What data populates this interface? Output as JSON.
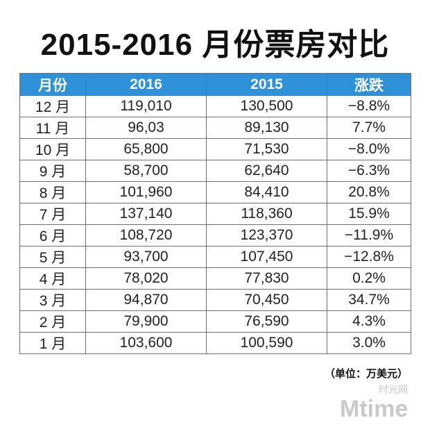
{
  "title": "2015-2016 月份票房对比",
  "chart_data": {
    "type": "table",
    "title": "2015-2016 月份票房对比",
    "columns": [
      "月份",
      "2016",
      "2015",
      "涨跌"
    ],
    "rows": [
      {
        "month": "12 月",
        "y2016": "119,010",
        "y2015": "130,500",
        "change": "−8.8%",
        "negative": true
      },
      {
        "month": "11 月",
        "y2016": "96,03",
        "y2015": "89,130",
        "change": "7.7%",
        "negative": false
      },
      {
        "month": "10 月",
        "y2016": "65,800",
        "y2015": "71,530",
        "change": "−8.0%",
        "negative": true
      },
      {
        "month": "9 月",
        "y2016": "58,700",
        "y2015": "62,640",
        "change": "−6.3%",
        "negative": true
      },
      {
        "month": "8 月",
        "y2016": "101,960",
        "y2015": "84,410",
        "change": "20.8%",
        "negative": false
      },
      {
        "month": "7 月",
        "y2016": "137,140",
        "y2015": "118,360",
        "change": "15.9%",
        "negative": false
      },
      {
        "month": "6 月",
        "y2016": "108,720",
        "y2015": "123,370",
        "change": "−11.9%",
        "negative": true
      },
      {
        "month": "5 月",
        "y2016": "93,700",
        "y2015": "107,450",
        "change": "−12.8%",
        "negative": true
      },
      {
        "month": "4 月",
        "y2016": "78,020",
        "y2015": "77,830",
        "change": "0.2%",
        "negative": false
      },
      {
        "month": "3 月",
        "y2016": "94,870",
        "y2015": "70,450",
        "change": "34.7%",
        "negative": false
      },
      {
        "month": "2 月",
        "y2016": "79,900",
        "y2015": "76,590",
        "change": "4.3%",
        "negative": false
      },
      {
        "month": "1 月",
        "y2016": "103,600",
        "y2015": "100,590",
        "change": "3.0%",
        "negative": false
      }
    ],
    "unit_note": "（单位：万美元）"
  },
  "watermark": {
    "cn": "时光网",
    "en": "Mtime"
  },
  "colors": {
    "header_bg": "#2f91d8",
    "negative": "#d2272f"
  }
}
